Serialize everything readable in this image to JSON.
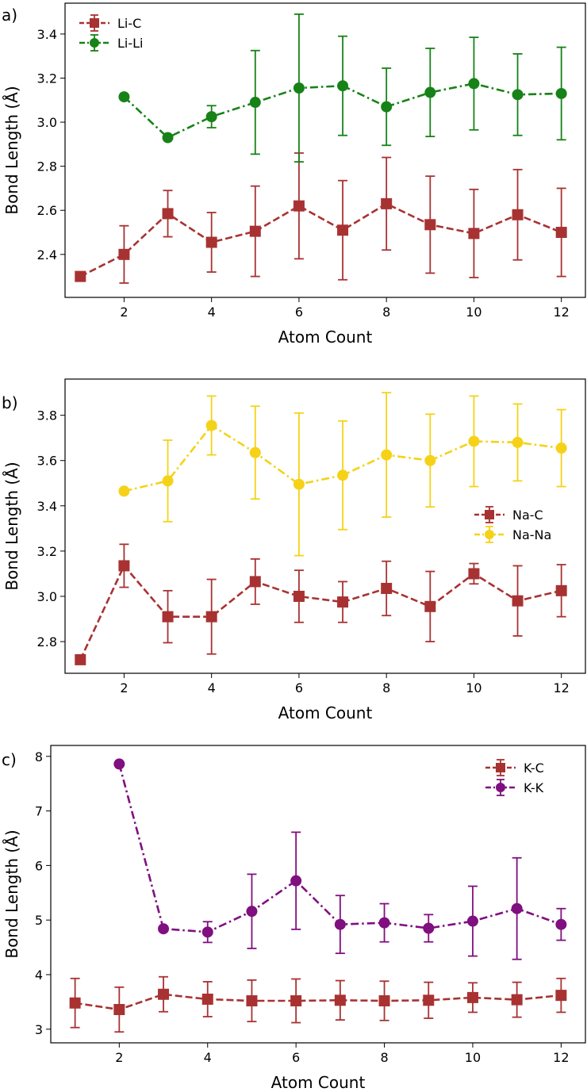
{
  "chart_data": [
    {
      "type": "line",
      "panel_label": "a)",
      "xlabel": "Atom Count",
      "ylabel": "Bond Length (Å)",
      "xlim": [
        0.65,
        12.55
      ],
      "ylim": [
        2.205,
        3.54
      ],
      "xticks": [
        2,
        4,
        6,
        8,
        10,
        12
      ],
      "yticks": [
        2.4,
        2.6,
        2.8,
        3.0,
        3.2,
        3.4
      ],
      "ytick_decimals": 1,
      "legend_position": "upper-left",
      "series": [
        {
          "name": "Li-C",
          "color": "#a83232",
          "marker": "square",
          "linestyle": "dashed",
          "x": [
            1,
            2,
            3,
            4,
            5,
            6,
            7,
            8,
            9,
            10,
            11,
            12
          ],
          "y": [
            2.3,
            2.4,
            2.585,
            2.455,
            2.505,
            2.62,
            2.51,
            2.63,
            2.535,
            2.495,
            2.58,
            2.5
          ],
          "err": [
            0,
            0.13,
            0.105,
            0.135,
            0.205,
            0.24,
            0.225,
            0.21,
            0.22,
            0.2,
            0.205,
            0.2
          ]
        },
        {
          "name": "Li-Li",
          "color": "#178217",
          "marker": "circle",
          "linestyle": "dashdot",
          "x": [
            2,
            3,
            4,
            5,
            6,
            7,
            8,
            9,
            10,
            11,
            12
          ],
          "y": [
            3.115,
            2.93,
            3.025,
            3.09,
            3.155,
            3.165,
            3.07,
            3.135,
            3.175,
            3.125,
            3.13
          ],
          "err": [
            0,
            0,
            0.05,
            0.235,
            0.335,
            0.225,
            0.175,
            0.2,
            0.21,
            0.185,
            0.21
          ]
        }
      ]
    },
    {
      "type": "line",
      "panel_label": "b)",
      "xlabel": "Atom Count",
      "ylabel": "Bond Length (Å)",
      "xlim": [
        0.65,
        12.55
      ],
      "ylim": [
        2.66,
        3.96
      ],
      "xticks": [
        2,
        4,
        6,
        8,
        10,
        12
      ],
      "yticks": [
        2.8,
        3.0,
        3.2,
        3.4,
        3.6,
        3.8
      ],
      "ytick_decimals": 1,
      "legend_position": "center-right",
      "series": [
        {
          "name": "Na-C",
          "color": "#a83232",
          "marker": "square",
          "linestyle": "dashed",
          "x": [
            1,
            2,
            3,
            4,
            5,
            6,
            7,
            8,
            9,
            10,
            11,
            12
          ],
          "y": [
            2.72,
            3.135,
            2.91,
            2.91,
            3.065,
            3.0,
            2.975,
            3.035,
            2.955,
            3.1,
            2.98,
            3.025
          ],
          "err": [
            0,
            0.095,
            0.115,
            0.165,
            0.1,
            0.115,
            0.09,
            0.12,
            0.155,
            0.045,
            0.155,
            0.115
          ]
        },
        {
          "name": "Na-Na",
          "color": "#f5d218",
          "marker": "circle",
          "linestyle": "dashdot",
          "x": [
            2,
            3,
            4,
            5,
            6,
            7,
            8,
            9,
            10,
            11,
            12
          ],
          "y": [
            3.465,
            3.51,
            3.755,
            3.635,
            3.495,
            3.535,
            3.625,
            3.6,
            3.685,
            3.68,
            3.655
          ],
          "err": [
            0,
            0.18,
            0.13,
            0.205,
            0.315,
            0.24,
            0.275,
            0.205,
            0.2,
            0.17,
            0.17
          ]
        }
      ]
    },
    {
      "type": "line",
      "panel_label": "c)",
      "xlabel": "Atom Count",
      "ylabel": "Bond Length (Å)",
      "xlim": [
        0.45,
        12.55
      ],
      "ylim": [
        2.75,
        8.2
      ],
      "xticks": [
        2,
        4,
        6,
        8,
        10,
        12
      ],
      "yticks": [
        3,
        4,
        5,
        6,
        7,
        8
      ],
      "ytick_decimals": 0,
      "legend_position": "upper-right",
      "series": [
        {
          "name": "K-C",
          "color": "#a83232",
          "marker": "square",
          "linestyle": "dashed",
          "x": [
            1,
            2,
            3,
            4,
            5,
            6,
            7,
            8,
            9,
            10,
            11,
            12
          ],
          "y": [
            3.48,
            3.36,
            3.64,
            3.55,
            3.52,
            3.52,
            3.53,
            3.52,
            3.53,
            3.58,
            3.54,
            3.62
          ],
          "err": [
            0.45,
            0.41,
            0.32,
            0.32,
            0.38,
            0.4,
            0.36,
            0.36,
            0.33,
            0.27,
            0.32,
            0.31
          ]
        },
        {
          "name": "K-K",
          "color": "#800f80",
          "marker": "circle",
          "linestyle": "dashdot",
          "x": [
            2,
            3,
            4,
            5,
            6,
            7,
            8,
            9,
            10,
            11,
            12
          ],
          "y": [
            7.86,
            4.84,
            4.78,
            5.16,
            5.72,
            4.92,
            4.95,
            4.85,
            4.98,
            5.21,
            4.92
          ],
          "err": [
            0,
            0,
            0.19,
            0.68,
            0.89,
            0.53,
            0.35,
            0.25,
            0.64,
            0.93,
            0.29
          ]
        }
      ]
    }
  ]
}
